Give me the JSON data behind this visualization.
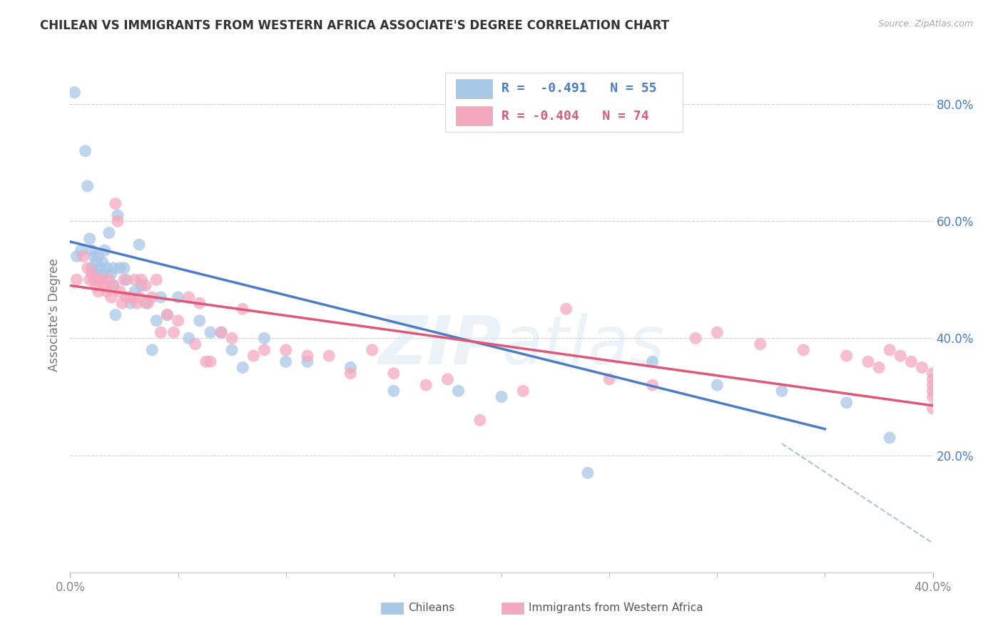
{
  "title": "CHILEAN VS IMMIGRANTS FROM WESTERN AFRICA ASSOCIATE'S DEGREE CORRELATION CHART",
  "source": "Source: ZipAtlas.com",
  "ylabel": "Associate's Degree",
  "watermark": "ZIPatlas",
  "legend_blue_label": "Chileans",
  "legend_pink_label": "Immigrants from Western Africa",
  "legend_blue_R": "R =  -0.491",
  "legend_blue_N": "N = 55",
  "legend_pink_R": "R = -0.404",
  "legend_pink_N": "N = 74",
  "blue_color": "#a8c8e8",
  "pink_color": "#f4a8c0",
  "blue_line_color": "#4a7cc7",
  "pink_line_color": "#e05878",
  "dashed_line_color": "#aac4de",
  "xlim": [
    0.0,
    0.4
  ],
  "ylim": [
    0.0,
    0.88
  ],
  "x_ticks": [
    0.0,
    0.1,
    0.2,
    0.3,
    0.4
  ],
  "x_tick_labels_bottom": [
    "0.0%",
    "",
    "",
    "",
    "40.0%"
  ],
  "y_ticks": [
    0.2,
    0.4,
    0.6,
    0.8
  ],
  "y_tick_labels": [
    "20.0%",
    "40.0%",
    "60.0%",
    "80.0%"
  ],
  "blue_scatter_x": [
    0.002,
    0.003,
    0.005,
    0.007,
    0.008,
    0.009,
    0.01,
    0.01,
    0.011,
    0.012,
    0.012,
    0.013,
    0.014,
    0.015,
    0.015,
    0.016,
    0.017,
    0.018,
    0.019,
    0.02,
    0.02,
    0.021,
    0.022,
    0.023,
    0.025,
    0.026,
    0.028,
    0.03,
    0.032,
    0.033,
    0.035,
    0.038,
    0.04,
    0.042,
    0.045,
    0.05,
    0.055,
    0.06,
    0.065,
    0.07,
    0.075,
    0.08,
    0.09,
    0.1,
    0.11,
    0.13,
    0.15,
    0.18,
    0.2,
    0.24,
    0.27,
    0.3,
    0.33,
    0.36,
    0.38
  ],
  "blue_scatter_y": [
    0.82,
    0.54,
    0.55,
    0.72,
    0.66,
    0.57,
    0.55,
    0.52,
    0.54,
    0.53,
    0.51,
    0.54,
    0.52,
    0.53,
    0.51,
    0.55,
    0.52,
    0.58,
    0.51,
    0.52,
    0.49,
    0.44,
    0.61,
    0.52,
    0.52,
    0.5,
    0.46,
    0.48,
    0.56,
    0.49,
    0.46,
    0.38,
    0.43,
    0.47,
    0.44,
    0.47,
    0.4,
    0.43,
    0.41,
    0.41,
    0.38,
    0.35,
    0.4,
    0.36,
    0.36,
    0.35,
    0.31,
    0.31,
    0.3,
    0.17,
    0.36,
    0.32,
    0.31,
    0.29,
    0.23
  ],
  "pink_scatter_x": [
    0.003,
    0.006,
    0.008,
    0.009,
    0.01,
    0.011,
    0.012,
    0.013,
    0.013,
    0.015,
    0.016,
    0.017,
    0.018,
    0.019,
    0.02,
    0.021,
    0.022,
    0.023,
    0.024,
    0.025,
    0.026,
    0.028,
    0.03,
    0.031,
    0.032,
    0.033,
    0.035,
    0.036,
    0.038,
    0.04,
    0.042,
    0.045,
    0.048,
    0.05,
    0.055,
    0.058,
    0.06,
    0.063,
    0.065,
    0.07,
    0.075,
    0.08,
    0.085,
    0.09,
    0.1,
    0.11,
    0.12,
    0.13,
    0.14,
    0.15,
    0.165,
    0.175,
    0.19,
    0.21,
    0.23,
    0.25,
    0.27,
    0.29,
    0.3,
    0.32,
    0.34,
    0.36,
    0.37,
    0.375,
    0.38,
    0.385,
    0.39,
    0.395,
    0.4,
    0.4,
    0.4,
    0.4,
    0.4,
    0.4
  ],
  "pink_scatter_y": [
    0.5,
    0.54,
    0.52,
    0.5,
    0.51,
    0.5,
    0.49,
    0.5,
    0.48,
    0.5,
    0.49,
    0.48,
    0.5,
    0.47,
    0.49,
    0.63,
    0.6,
    0.48,
    0.46,
    0.5,
    0.47,
    0.47,
    0.5,
    0.46,
    0.47,
    0.5,
    0.49,
    0.46,
    0.47,
    0.5,
    0.41,
    0.44,
    0.41,
    0.43,
    0.47,
    0.39,
    0.46,
    0.36,
    0.36,
    0.41,
    0.4,
    0.45,
    0.37,
    0.38,
    0.38,
    0.37,
    0.37,
    0.34,
    0.38,
    0.34,
    0.32,
    0.33,
    0.26,
    0.31,
    0.45,
    0.33,
    0.32,
    0.4,
    0.41,
    0.39,
    0.38,
    0.37,
    0.36,
    0.35,
    0.38,
    0.37,
    0.36,
    0.35,
    0.34,
    0.33,
    0.32,
    0.31,
    0.3,
    0.28
  ],
  "blue_line_x": [
    0.0,
    0.35
  ],
  "blue_line_y": [
    0.565,
    0.245
  ],
  "pink_line_x": [
    0.0,
    0.4
  ],
  "pink_line_y": [
    0.49,
    0.285
  ],
  "dashed_line_x": [
    0.33,
    0.4
  ],
  "dashed_line_y": [
    0.22,
    0.05
  ],
  "figsize": [
    14.06,
    8.92
  ],
  "dpi": 100
}
